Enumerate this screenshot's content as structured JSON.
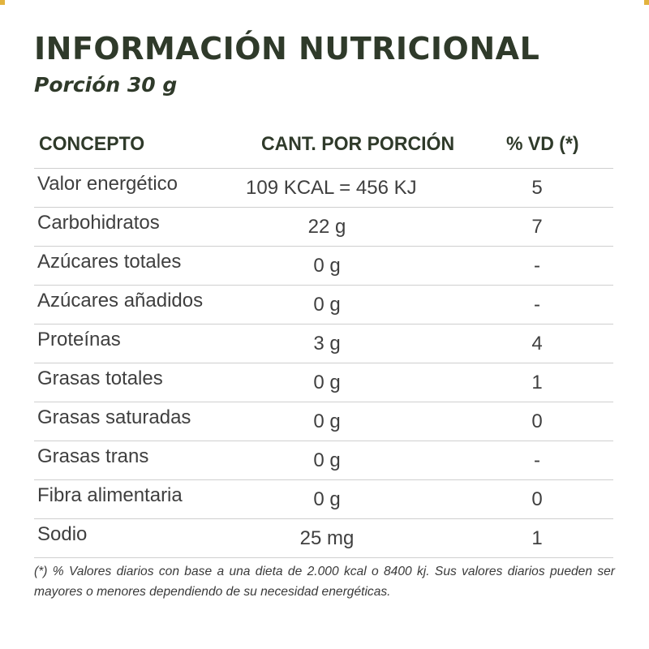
{
  "header": {
    "title": "INFORMACIÓN NUTRICIONAL",
    "subtitle": "Porción 30 g"
  },
  "table": {
    "columns": [
      "CONCEPTO",
      "CANT. POR PORCIÓN",
      "% VD (*)"
    ],
    "rows": [
      {
        "concepto": "Valor energético",
        "cantidad": "109 KCAL = 456 KJ",
        "vd": "5"
      },
      {
        "concepto": "Carbohidratos",
        "cantidad": "22 g",
        "vd": "7"
      },
      {
        "concepto": "Azúcares totales",
        "cantidad": "0 g",
        "vd": "-"
      },
      {
        "concepto": "Azúcares añadidos",
        "cantidad": "0 g",
        "vd": "-"
      },
      {
        "concepto": "Proteínas",
        "cantidad": "3 g",
        "vd": "4"
      },
      {
        "concepto": "Grasas totales",
        "cantidad": "0 g",
        "vd": "1"
      },
      {
        "concepto": "Grasas saturadas",
        "cantidad": "0 g",
        "vd": "0"
      },
      {
        "concepto": "Grasas trans",
        "cantidad": "0 g",
        "vd": "-"
      },
      {
        "concepto": "Fibra alimentaria",
        "cantidad": "0 g",
        "vd": "0"
      },
      {
        "concepto": "Sodio",
        "cantidad": "25 mg",
        "vd": "1"
      }
    ]
  },
  "footnote": "(*) % Valores diarios con base a una dieta de 2.000 kcal o 8400 kj. Sus valores diarios pueden ser mayores o menores dependiendo de su necesidad energéticas.",
  "colors": {
    "title": "#2f3a2a",
    "text": "#3f3f3f",
    "divider": "#cfcfcf",
    "accent": "#e2b33d"
  }
}
